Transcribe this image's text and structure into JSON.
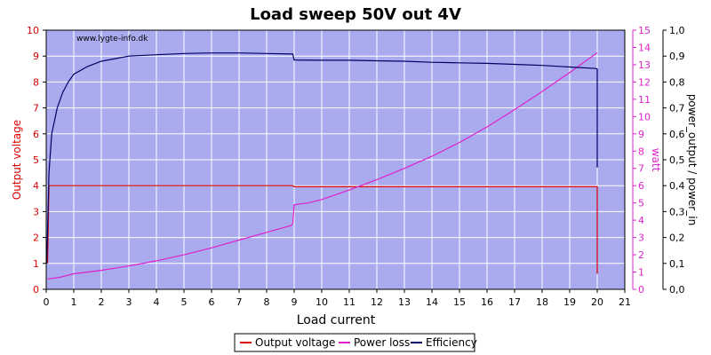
{
  "chart_data": {
    "type": "line",
    "title": "Load sweep 50V out 4V",
    "watermark": "www.lygte-info.dk",
    "xlabel": "Load current",
    "ylabel_left": "Output voltage",
    "ylabel_right1": "watt",
    "ylabel_right2": "power_output / power_in",
    "xlim": [
      0,
      21
    ],
    "ylim_left": [
      0,
      10
    ],
    "ylim_right1": [
      0,
      15
    ],
    "ylim_right2": [
      0,
      1.0
    ],
    "x_ticks": [
      "0",
      "1",
      "2",
      "3",
      "4",
      "5",
      "6",
      "7",
      "8",
      "9",
      "10",
      "11",
      "12",
      "13",
      "14",
      "15",
      "16",
      "17",
      "18",
      "19",
      "20",
      "21"
    ],
    "y_left_ticks": [
      "0",
      "1",
      "2",
      "3",
      "4",
      "5",
      "6",
      "7",
      "8",
      "9",
      "10"
    ],
    "y_right1_ticks": [
      "0",
      "1",
      "2",
      "3",
      "4",
      "5",
      "6",
      "7",
      "8",
      "9",
      "10",
      "11",
      "12",
      "13",
      "14",
      "15"
    ],
    "y_right2_ticks": [
      "0,0",
      "0,1",
      "0,2",
      "0,3",
      "0,4",
      "0,5",
      "0,6",
      "0,7",
      "0,8",
      "0,9",
      "1,0"
    ],
    "grid": true,
    "legend_position": "bottom-center",
    "colors": {
      "plot_bg": "#aaaaee",
      "output_voltage": "#dd0000",
      "power_loss": "#dd22cc",
      "efficiency": "#000066",
      "grid": "#ffffff"
    },
    "series": [
      {
        "name": "Output voltage",
        "axis": "left",
        "x": [
          0.05,
          0.1,
          2,
          4,
          6,
          8,
          8.95,
          9.0,
          10,
          12,
          14,
          16,
          18,
          19.95,
          20.0,
          20.0
        ],
        "values": [
          1.0,
          4.0,
          4.0,
          4.0,
          4.0,
          4.0,
          4.0,
          3.96,
          3.96,
          3.96,
          3.96,
          3.96,
          3.96,
          3.96,
          3.96,
          0.6
        ]
      },
      {
        "name": "Power loss",
        "axis": "right1",
        "x": [
          0.05,
          0.5,
          1,
          2,
          3,
          4,
          5,
          6,
          7,
          8,
          8.9,
          8.95,
          9.0,
          9.5,
          10,
          11,
          12,
          13,
          14,
          15,
          16,
          17,
          18,
          19,
          20
        ],
        "values": [
          0.6,
          0.7,
          0.9,
          1.1,
          1.35,
          1.65,
          2.0,
          2.4,
          2.85,
          3.3,
          3.7,
          3.8,
          4.9,
          5.0,
          5.2,
          5.75,
          6.35,
          7.0,
          7.7,
          8.5,
          9.4,
          10.4,
          11.45,
          12.55,
          13.7
        ]
      },
      {
        "name": "Efficiency",
        "axis": "right2",
        "x": [
          0.02,
          0.1,
          0.2,
          0.4,
          0.6,
          0.8,
          1.0,
          1.5,
          2,
          2.5,
          3,
          4,
          5,
          6,
          7,
          8,
          8.95,
          9.0,
          10,
          11,
          12,
          13,
          14,
          15,
          16,
          17,
          18,
          19,
          19.95,
          20.0,
          20.0
        ],
        "values": [
          0.1,
          0.45,
          0.6,
          0.7,
          0.76,
          0.8,
          0.83,
          0.86,
          0.88,
          0.89,
          0.9,
          0.905,
          0.91,
          0.912,
          0.912,
          0.91,
          0.908,
          0.885,
          0.884,
          0.884,
          0.882,
          0.88,
          0.876,
          0.874,
          0.872,
          0.868,
          0.864,
          0.858,
          0.852,
          0.85,
          0.47
        ]
      }
    ]
  }
}
